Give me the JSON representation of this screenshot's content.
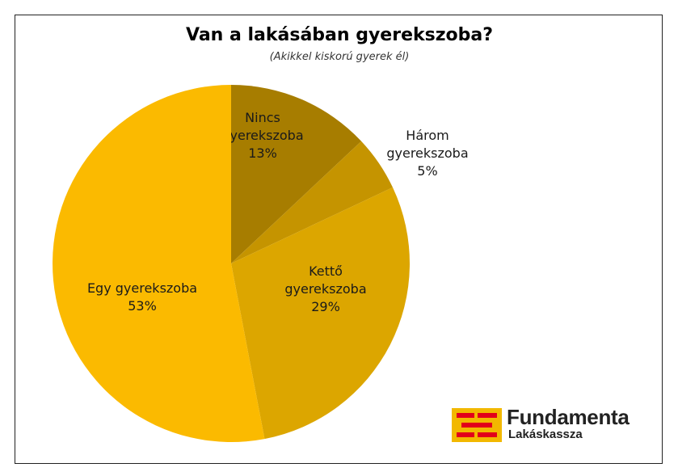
{
  "chart_data": {
    "type": "pie",
    "title": "Van a lakásában gyerekszoba?",
    "subtitle": "(Akikkel kiskorú gyerek él)",
    "slices": [
      {
        "label": [
          "Nincs",
          "gyerekszoba"
        ],
        "percent_label": "13%",
        "value": 13,
        "color": "#a77d00"
      },
      {
        "label": [
          "Három",
          "gyerekszoba"
        ],
        "percent_label": "5%",
        "value": 5,
        "color": "#c59400"
      },
      {
        "label": [
          "Kettő",
          "gyerekszoba"
        ],
        "percent_label": "29%",
        "value": 29,
        "color": "#dca600"
      },
      {
        "label": [
          "Egy gyerekszoba"
        ],
        "percent_label": "53%",
        "value": 53,
        "color": "#fbba00"
      }
    ],
    "legend": "none"
  },
  "logo": {
    "name": "Fundamenta",
    "sub": "Lakáskassza",
    "color": "#f2b800",
    "brick_color": "#e2001a"
  }
}
